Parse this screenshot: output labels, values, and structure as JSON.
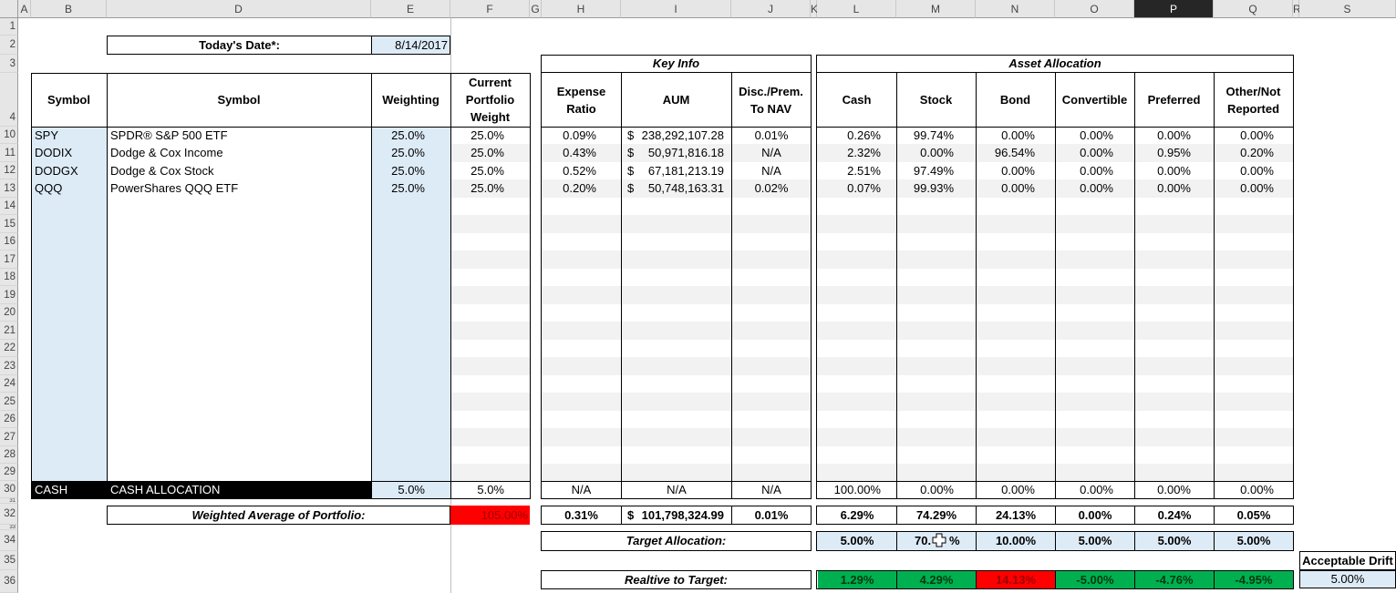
{
  "columns": [
    "A",
    "B",
    "D",
    "E",
    "F",
    "G",
    "H",
    "I",
    "J",
    "K",
    "L",
    "M",
    "N",
    "O",
    "P",
    "Q",
    "R",
    "S"
  ],
  "rows": [
    "1",
    "2",
    "3",
    "4",
    "10",
    "11",
    "12",
    "13",
    "14",
    "15",
    "16",
    "17",
    "18",
    "19",
    "20",
    "21",
    "22",
    "23",
    "24",
    "25",
    "26",
    "27",
    "28",
    "29",
    "30",
    "31",
    "32",
    "33",
    "34",
    "35",
    "36"
  ],
  "date": {
    "label": "Today's Date*:",
    "value": "8/14/2017"
  },
  "groups": {
    "key_info": "Key Info",
    "asset_allocation": "Asset Allocation"
  },
  "headers": {
    "symbol_b": "Symbol",
    "symbol_d": "Symbol",
    "weighting": "Weighting",
    "current_weight": [
      "Current",
      "Portfolio",
      "Weight"
    ],
    "expense": [
      "Expense",
      "Ratio"
    ],
    "aum": "AUM",
    "disc": [
      "Disc./Prem.",
      "To NAV"
    ],
    "cash": "Cash",
    "stock": "Stock",
    "bond": "Bond",
    "convertible": "Convertible",
    "preferred": "Preferred",
    "other": [
      "Other/Not",
      "Reported"
    ]
  },
  "holdings": [
    {
      "symbol": "SPY",
      "name": "SPDR® S&P 500 ETF",
      "weighting": "25.0%",
      "current": "25.0%",
      "expense": "0.09%",
      "aum": "238,292,107.28",
      "disc": "0.01%",
      "cash": "0.26%",
      "stock": "99.74%",
      "bond": "0.00%",
      "convertible": "0.00%",
      "preferred": "0.00%",
      "other": "0.00%"
    },
    {
      "symbol": "DODIX",
      "name": "Dodge & Cox Income",
      "weighting": "25.0%",
      "current": "25.0%",
      "expense": "0.43%",
      "aum": "50,971,816.18",
      "disc": "N/A",
      "cash": "2.32%",
      "stock": "0.00%",
      "bond": "96.54%",
      "convertible": "0.00%",
      "preferred": "0.95%",
      "other": "0.20%"
    },
    {
      "symbol": "DODGX",
      "name": "Dodge & Cox Stock",
      "weighting": "25.0%",
      "current": "25.0%",
      "expense": "0.52%",
      "aum": "67,181,213.19",
      "disc": "N/A",
      "cash": "2.51%",
      "stock": "97.49%",
      "bond": "0.00%",
      "convertible": "0.00%",
      "preferred": "0.00%",
      "other": "0.00%"
    },
    {
      "symbol": "QQQ",
      "name": "PowerShares QQQ ETF",
      "weighting": "25.0%",
      "current": "25.0%",
      "expense": "0.20%",
      "aum": "50,748,163.31",
      "disc": "0.02%",
      "cash": "0.07%",
      "stock": "99.93%",
      "bond": "0.00%",
      "convertible": "0.00%",
      "preferred": "0.00%",
      "other": "0.00%"
    }
  ],
  "cash_row": {
    "symbol": "CASH",
    "name": "CASH ALLOCATION",
    "weighting": "5.0%",
    "current": "5.0%",
    "expense": "N/A",
    "aum": "N/A",
    "disc": "N/A",
    "cash": "100.00%",
    "stock": "0.00%",
    "bond": "0.00%",
    "convertible": "0.00%",
    "preferred": "0.00%",
    "other": "0.00%"
  },
  "weighted": {
    "label": "Weighted Average of Portfolio:",
    "total": "105.00%",
    "expense": "0.31%",
    "aum": "101,798,324.99",
    "disc": "0.01%",
    "cash": "6.29%",
    "stock": "74.29%",
    "bond": "24.13%",
    "convertible": "0.00%",
    "preferred": "0.24%",
    "other": "0.05%"
  },
  "target": {
    "label": "Target Allocation:",
    "cash": "5.00%",
    "stock": "70.",
    "stock_tail": "%",
    "bond": "10.00%",
    "convertible": "5.00%",
    "preferred": "5.00%",
    "other": "5.00%"
  },
  "drift": {
    "label": "Acceptable Drift",
    "value": "5.00%"
  },
  "relative": {
    "label": "Realtive to Target:",
    "cash": "1.29%",
    "stock": "4.29%",
    "bond": "14.13%",
    "convertible": "-5.00%",
    "preferred": "-4.76%",
    "other": "-4.95%"
  },
  "dollar_sign": "$",
  "colors": {
    "green": "#00b050",
    "red": "#ff0000",
    "input_blue": "#ddebf7",
    "selected_header": "#262626"
  },
  "cursor_icon": "excel-cell-cross-cursor"
}
